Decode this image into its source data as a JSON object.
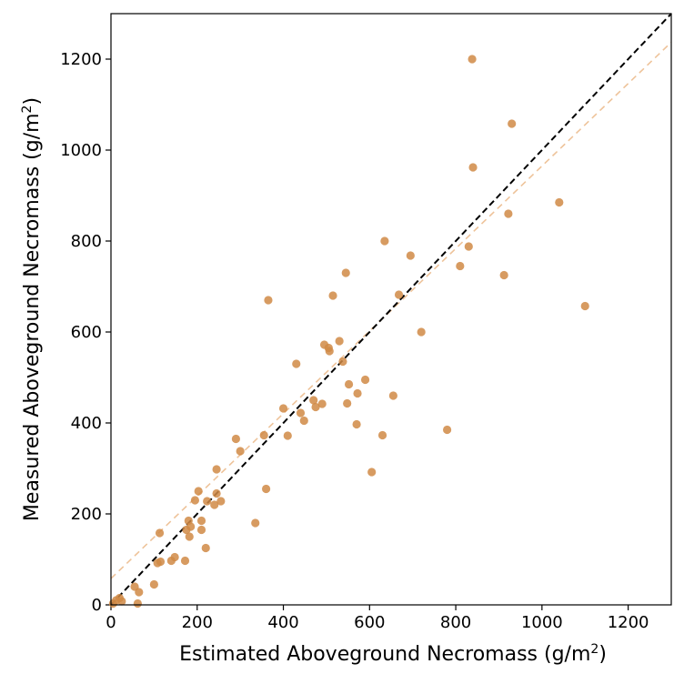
{
  "chart_data": {
    "type": "scatter",
    "title": "",
    "xlabel": "Estimated Aboveground Necromass (g/m",
    "xlabel_sup": "2",
    "xlabel_end": ")",
    "ylabel": "Measured Aboveground Necromass (g/m",
    "ylabel_sup": "2",
    "ylabel_end": ")",
    "xlim": [
      0,
      1300
    ],
    "ylim": [
      0,
      1300
    ],
    "xticks": [
      0,
      200,
      400,
      600,
      800,
      1000,
      1200
    ],
    "yticks": [
      0,
      200,
      400,
      600,
      800,
      1000,
      1200
    ],
    "xtick_labels": [
      "0",
      "200",
      "400",
      "600",
      "800",
      "1000",
      "1200"
    ],
    "ytick_labels": [
      "0",
      "200",
      "400",
      "600",
      "800",
      "1000",
      "1200"
    ],
    "grid": false,
    "point_color": "#d08a45",
    "reference_line": {
      "style": "dashed",
      "color": "#000000",
      "x": [
        0,
        1300
      ],
      "y": [
        0,
        1300
      ]
    },
    "fit_line": {
      "style": "dashed",
      "color": "#eec39a",
      "x": [
        0,
        1300
      ],
      "y": [
        58,
        1237
      ]
    },
    "series": [
      {
        "points": [
          [
            5,
            3
          ],
          [
            12,
            10
          ],
          [
            20,
            15
          ],
          [
            25,
            8
          ],
          [
            55,
            40
          ],
          [
            65,
            28
          ],
          [
            62,
            3
          ],
          [
            100,
            45
          ],
          [
            108,
            92
          ],
          [
            115,
            95
          ],
          [
            113,
            158
          ],
          [
            140,
            97
          ],
          [
            148,
            105
          ],
          [
            172,
            97
          ],
          [
            175,
            165
          ],
          [
            180,
            185
          ],
          [
            182,
            150
          ],
          [
            185,
            172
          ],
          [
            195,
            230
          ],
          [
            203,
            250
          ],
          [
            210,
            165
          ],
          [
            210,
            185
          ],
          [
            220,
            125
          ],
          [
            223,
            228
          ],
          [
            240,
            220
          ],
          [
            245,
            245
          ],
          [
            245,
            298
          ],
          [
            255,
            228
          ],
          [
            290,
            365
          ],
          [
            300,
            338
          ],
          [
            335,
            180
          ],
          [
            355,
            373
          ],
          [
            360,
            255
          ],
          [
            365,
            670
          ],
          [
            400,
            432
          ],
          [
            410,
            372
          ],
          [
            430,
            530
          ],
          [
            440,
            422
          ],
          [
            448,
            405
          ],
          [
            470,
            450
          ],
          [
            475,
            435
          ],
          [
            490,
            442
          ],
          [
            495,
            572
          ],
          [
            505,
            565
          ],
          [
            507,
            558
          ],
          [
            515,
            680
          ],
          [
            530,
            580
          ],
          [
            538,
            535
          ],
          [
            545,
            730
          ],
          [
            548,
            443
          ],
          [
            552,
            485
          ],
          [
            570,
            397
          ],
          [
            572,
            465
          ],
          [
            590,
            495
          ],
          [
            605,
            292
          ],
          [
            630,
            373
          ],
          [
            635,
            800
          ],
          [
            655,
            460
          ],
          [
            668,
            682
          ],
          [
            695,
            768
          ],
          [
            720,
            600
          ],
          [
            780,
            385
          ],
          [
            810,
            745
          ],
          [
            830,
            788
          ],
          [
            838,
            1200
          ],
          [
            840,
            962
          ],
          [
            912,
            725
          ],
          [
            922,
            860
          ],
          [
            930,
            1058
          ],
          [
            1040,
            885
          ],
          [
            1100,
            657
          ]
        ]
      }
    ]
  }
}
